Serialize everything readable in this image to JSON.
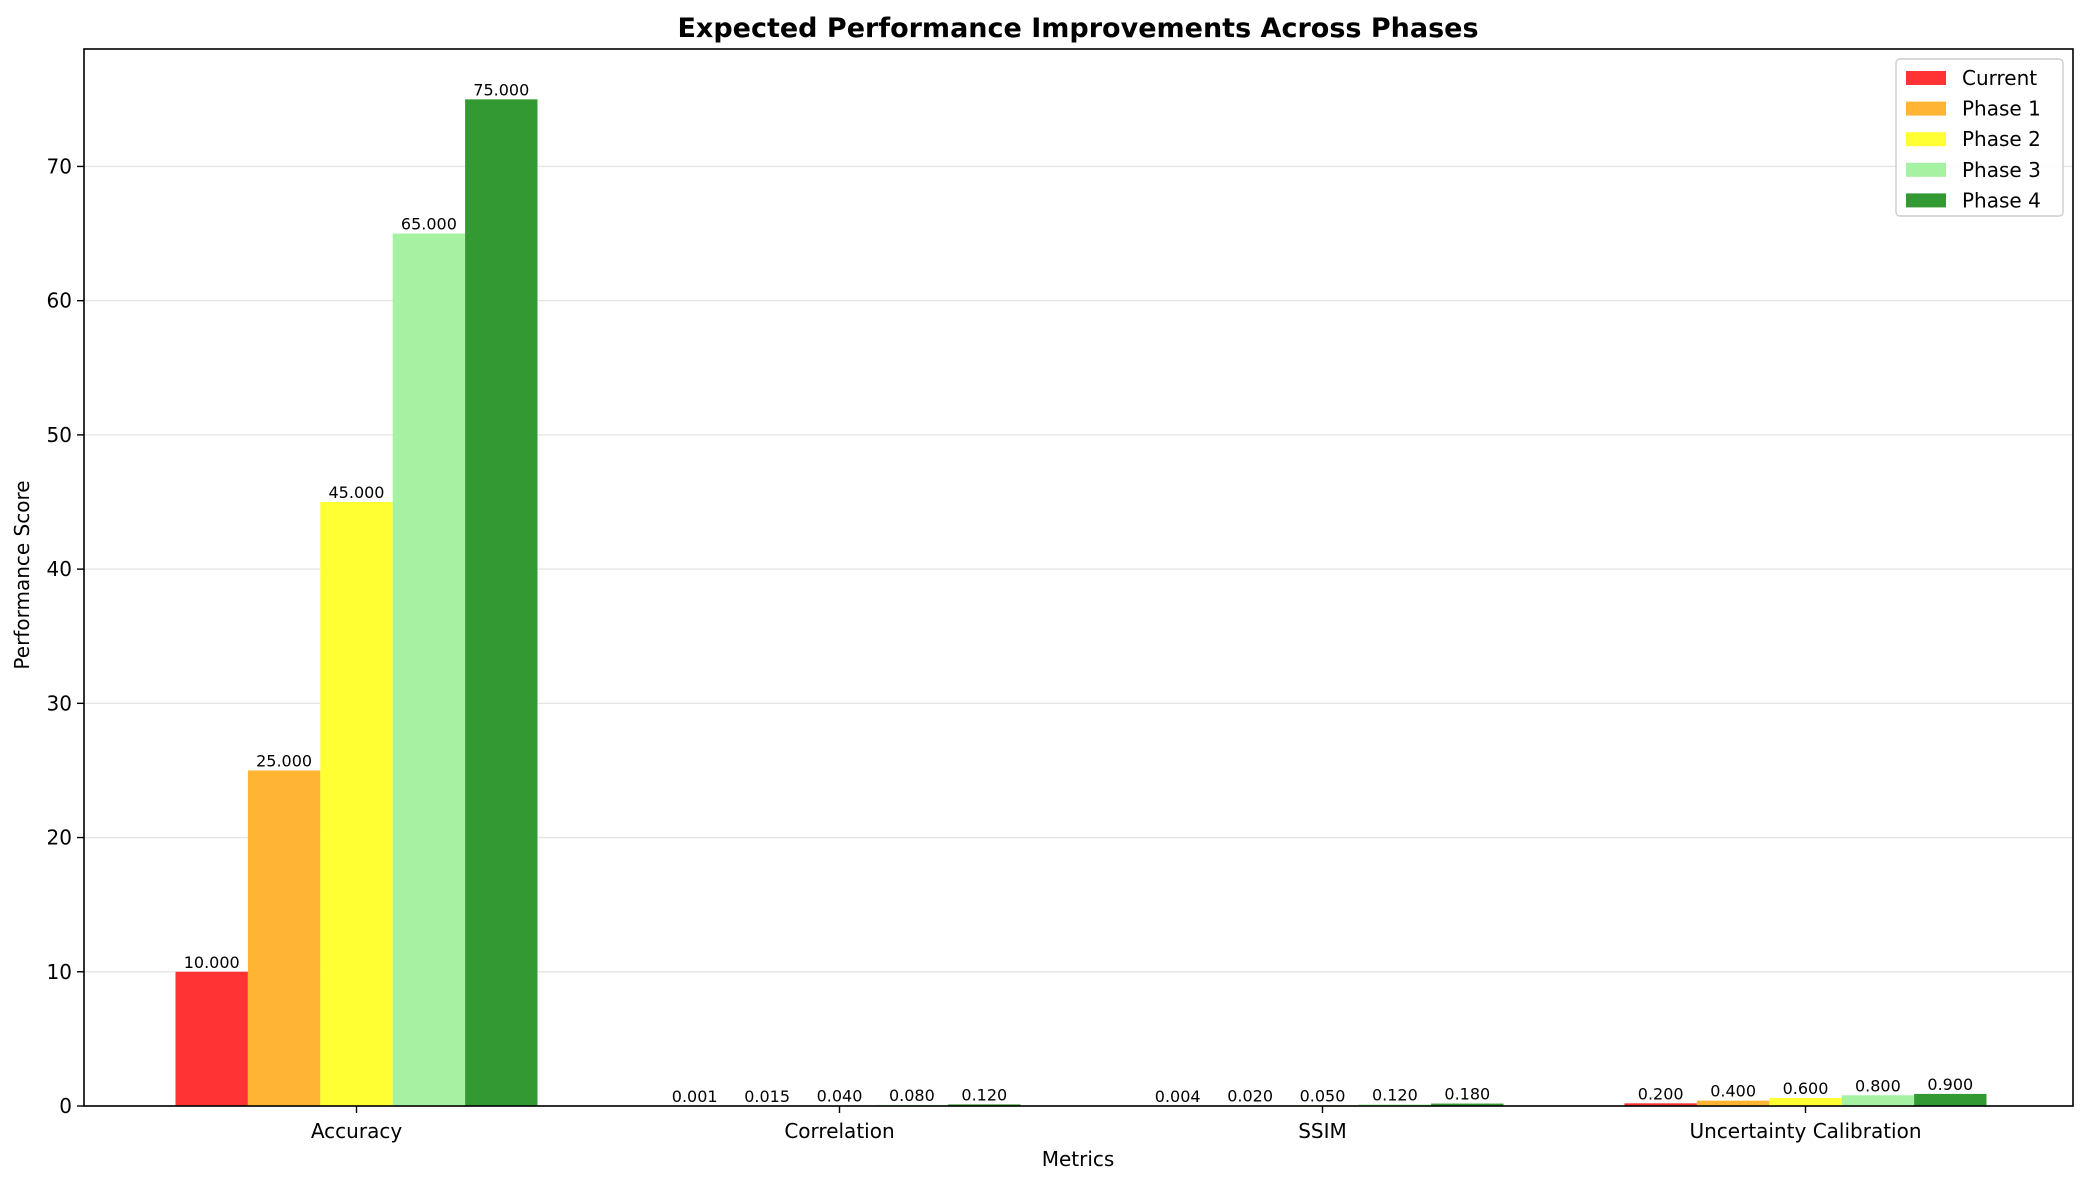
{
  "chart_data": {
    "type": "bar",
    "title": "Expected Performance Improvements Across Phases",
    "xlabel": "Metrics",
    "ylabel": "Performance Score",
    "categories": [
      "Accuracy",
      "Correlation",
      "SSIM",
      "Uncertainty Calibration"
    ],
    "series": [
      {
        "name": "Current",
        "color": "#ff3333",
        "values": [
          10.0,
          0.001,
          0.004,
          0.2
        ],
        "labels": [
          "10.000",
          "0.001",
          "0.004",
          "0.200"
        ]
      },
      {
        "name": "Phase 1",
        "color": "#ffb433",
        "values": [
          25.0,
          0.015,
          0.02,
          0.4
        ],
        "labels": [
          "25.000",
          "0.015",
          "0.020",
          "0.400"
        ]
      },
      {
        "name": "Phase 2",
        "color": "#ffff33",
        "values": [
          45.0,
          0.04,
          0.05,
          0.6
        ],
        "labels": [
          "45.000",
          "0.040",
          "0.050",
          "0.600"
        ]
      },
      {
        "name": "Phase 3",
        "color": "#a5f2a2",
        "values": [
          65.0,
          0.08,
          0.12,
          0.8
        ],
        "labels": [
          "65.000",
          "0.080",
          "0.120",
          "0.800"
        ]
      },
      {
        "name": "Phase 4",
        "color": "#339933",
        "values": [
          75.0,
          0.12,
          0.18,
          0.9
        ],
        "labels": [
          "75.000",
          "0.120",
          "0.180",
          "0.900"
        ]
      }
    ],
    "ylim": [
      0,
      78.75
    ],
    "yticks": [
      0,
      10,
      20,
      30,
      40,
      50,
      60,
      70
    ],
    "ytick_labels": [
      "0",
      "10",
      "20",
      "30",
      "40",
      "50",
      "60",
      "70"
    ],
    "grid": "y-axis",
    "legend_position": "top-right"
  }
}
